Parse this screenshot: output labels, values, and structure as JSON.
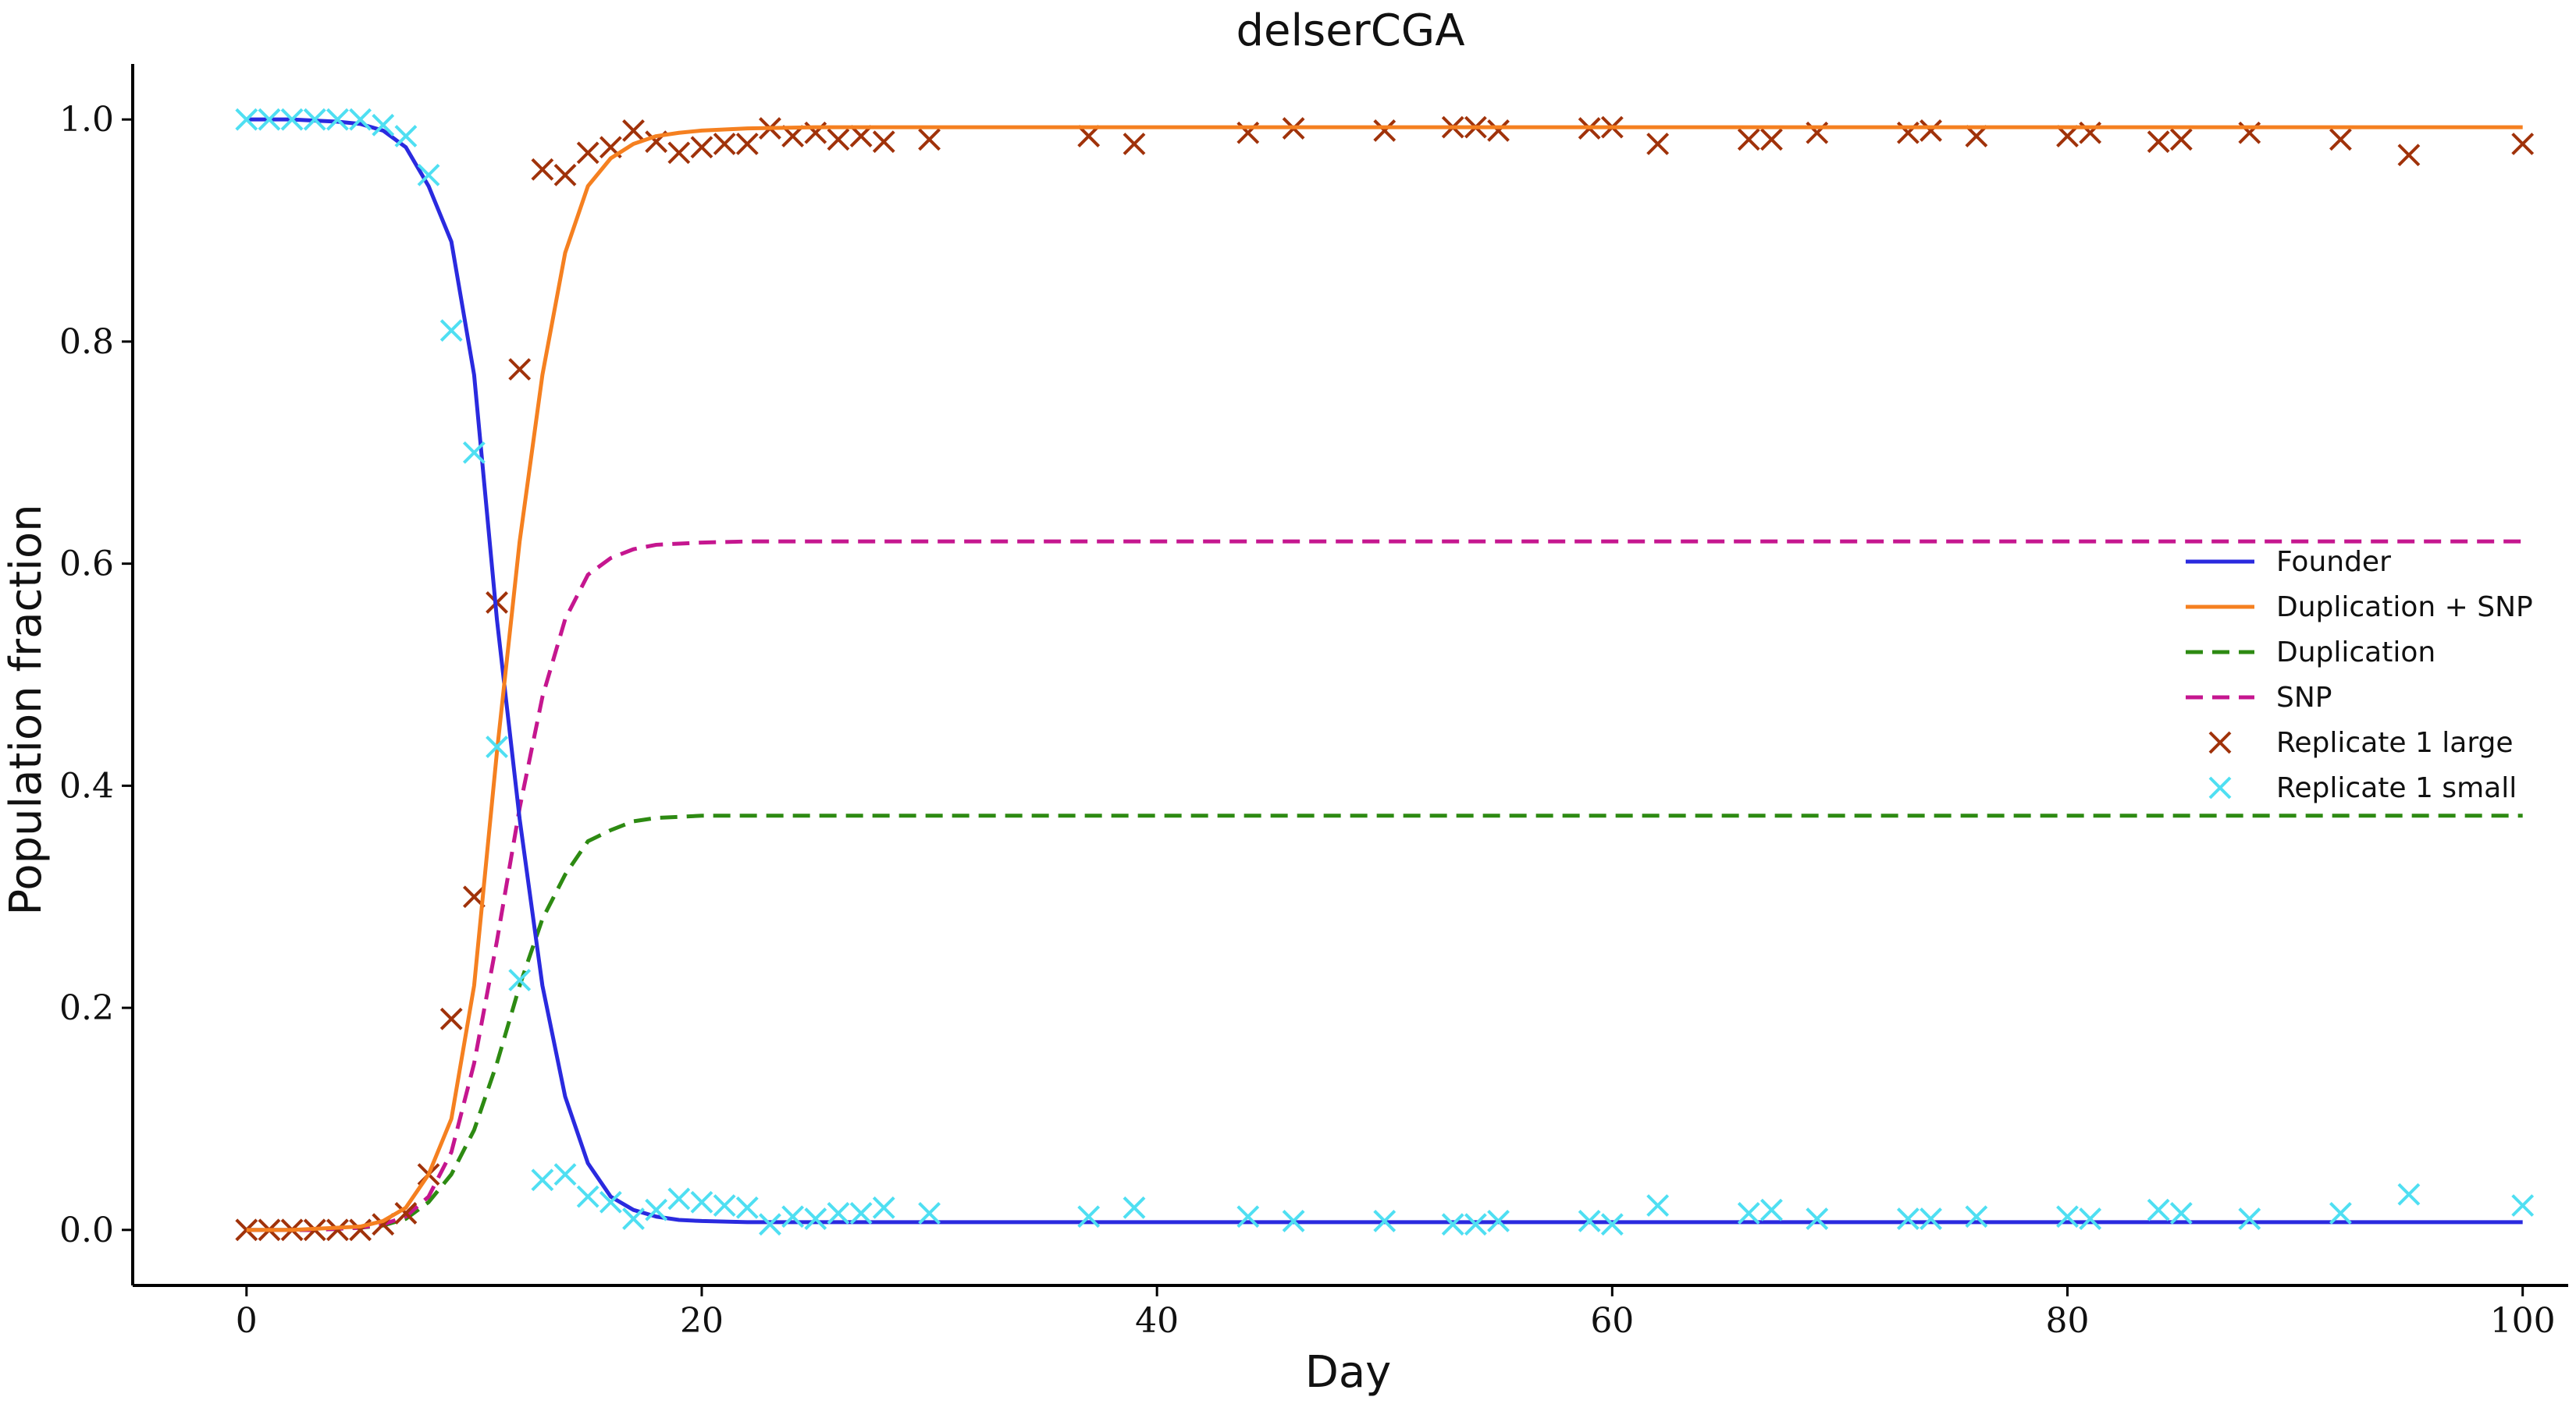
{
  "chart_data": {
    "type": "line",
    "title": "delserCGA",
    "xlabel": "Day",
    "ylabel": "Population fraction",
    "xlim": [
      -5,
      102
    ],
    "ylim": [
      -0.05,
      1.05
    ],
    "xticks": [
      0,
      20,
      40,
      60,
      80,
      100
    ],
    "yticks": [
      0.0,
      0.2,
      0.4,
      0.6,
      0.8,
      1.0
    ],
    "xtick_labels": [
      "0",
      "20",
      "40",
      "60",
      "80",
      "100"
    ],
    "ytick_labels": [
      "0.0",
      "0.2",
      "0.4",
      "0.6",
      "0.8",
      "1.0"
    ],
    "grid": false,
    "legend_position": "center-right",
    "x": [
      0,
      1,
      2,
      3,
      4,
      5,
      6,
      7,
      8,
      9,
      10,
      11,
      12,
      13,
      14,
      15,
      16,
      17,
      18,
      19,
      20,
      22,
      25,
      30,
      40,
      50,
      60,
      70,
      80,
      90,
      100
    ],
    "series": [
      {
        "name": "Founder",
        "kind": "line",
        "style": "solid",
        "color": "#2a2adf",
        "values": [
          1.0,
          1.0,
          1.0,
          0.999,
          0.998,
          0.996,
          0.99,
          0.975,
          0.94,
          0.89,
          0.77,
          0.55,
          0.37,
          0.22,
          0.12,
          0.06,
          0.03,
          0.018,
          0.012,
          0.009,
          0.008,
          0.007,
          0.007,
          0.007,
          0.007,
          0.007,
          0.007,
          0.007,
          0.007,
          0.007,
          0.007
        ]
      },
      {
        "name": "Duplication + SNP",
        "kind": "line",
        "style": "solid",
        "color": "#f58020",
        "values": [
          0.0,
          0.0,
          0.0,
          0.001,
          0.002,
          0.003,
          0.008,
          0.02,
          0.05,
          0.1,
          0.22,
          0.43,
          0.62,
          0.77,
          0.88,
          0.94,
          0.965,
          0.978,
          0.985,
          0.988,
          0.99,
          0.992,
          0.993,
          0.993,
          0.993,
          0.993,
          0.993,
          0.993,
          0.993,
          0.993,
          0.993
        ]
      },
      {
        "name": "Duplication",
        "kind": "line",
        "style": "dashed",
        "color": "#2d8a12",
        "values": [
          0.0,
          0.0,
          0.0,
          0.0,
          0.001,
          0.002,
          0.004,
          0.01,
          0.025,
          0.05,
          0.09,
          0.15,
          0.22,
          0.28,
          0.32,
          0.35,
          0.36,
          0.368,
          0.371,
          0.372,
          0.373,
          0.373,
          0.373,
          0.373,
          0.373,
          0.373,
          0.373,
          0.373,
          0.373,
          0.373,
          0.373
        ]
      },
      {
        "name": "SNP",
        "kind": "line",
        "style": "dashed",
        "color": "#c5168f",
        "values": [
          0.0,
          0.0,
          0.0,
          0.0,
          0.001,
          0.002,
          0.005,
          0.012,
          0.03,
          0.07,
          0.15,
          0.26,
          0.38,
          0.48,
          0.55,
          0.59,
          0.605,
          0.613,
          0.617,
          0.618,
          0.619,
          0.62,
          0.62,
          0.62,
          0.62,
          0.62,
          0.62,
          0.62,
          0.62,
          0.62,
          0.62
        ]
      },
      {
        "name": "Replicate 1 large",
        "kind": "scatter",
        "marker": "x",
        "color": "#a0320a",
        "points": [
          [
            0,
            0.0
          ],
          [
            1,
            0.0
          ],
          [
            2,
            0.0
          ],
          [
            3,
            0.0
          ],
          [
            4,
            0.0
          ],
          [
            5,
            0.0
          ],
          [
            6,
            0.005
          ],
          [
            7,
            0.015
          ],
          [
            8,
            0.05
          ],
          [
            9,
            0.19
          ],
          [
            10,
            0.3
          ],
          [
            11,
            0.565
          ],
          [
            12,
            0.775
          ],
          [
            13,
            0.955
          ],
          [
            14,
            0.95
          ],
          [
            15,
            0.97
          ],
          [
            16,
            0.975
          ],
          [
            17,
            0.99
          ],
          [
            18,
            0.98
          ],
          [
            19,
            0.97
          ],
          [
            20,
            0.975
          ],
          [
            21,
            0.978
          ],
          [
            22,
            0.978
          ],
          [
            23,
            0.992
          ],
          [
            24,
            0.985
          ],
          [
            25,
            0.988
          ],
          [
            26,
            0.982
          ],
          [
            27,
            0.985
          ],
          [
            28,
            0.98
          ],
          [
            30,
            0.982
          ],
          [
            37,
            0.985
          ],
          [
            39,
            0.978
          ],
          [
            44,
            0.988
          ],
          [
            46,
            0.992
          ],
          [
            50,
            0.99
          ],
          [
            53,
            0.993
          ],
          [
            54,
            0.993
          ],
          [
            55,
            0.99
          ],
          [
            59,
            0.992
          ],
          [
            60,
            0.993
          ],
          [
            62,
            0.978
          ],
          [
            66,
            0.982
          ],
          [
            67,
            0.982
          ],
          [
            69,
            0.988
          ],
          [
            73,
            0.988
          ],
          [
            74,
            0.99
          ],
          [
            76,
            0.985
          ],
          [
            80,
            0.985
          ],
          [
            81,
            0.988
          ],
          [
            84,
            0.98
          ],
          [
            85,
            0.982
          ],
          [
            88,
            0.988
          ],
          [
            92,
            0.982
          ],
          [
            95,
            0.968
          ],
          [
            100,
            0.978
          ]
        ]
      },
      {
        "name": "Replicate 1 small",
        "kind": "scatter",
        "marker": "x",
        "color": "#4fdff2",
        "points": [
          [
            0,
            1.0
          ],
          [
            1,
            1.0
          ],
          [
            2,
            1.0
          ],
          [
            3,
            1.0
          ],
          [
            4,
            1.0
          ],
          [
            5,
            1.0
          ],
          [
            6,
            0.995
          ],
          [
            7,
            0.985
          ],
          [
            8,
            0.95
          ],
          [
            9,
            0.81
          ],
          [
            10,
            0.7
          ],
          [
            11,
            0.435
          ],
          [
            12,
            0.225
          ],
          [
            13,
            0.045
          ],
          [
            14,
            0.05
          ],
          [
            15,
            0.03
          ],
          [
            16,
            0.025
          ],
          [
            17,
            0.01
          ],
          [
            18,
            0.018
          ],
          [
            19,
            0.028
          ],
          [
            20,
            0.025
          ],
          [
            21,
            0.022
          ],
          [
            22,
            0.02
          ],
          [
            23,
            0.005
          ],
          [
            24,
            0.012
          ],
          [
            25,
            0.01
          ],
          [
            26,
            0.015
          ],
          [
            27,
            0.015
          ],
          [
            28,
            0.02
          ],
          [
            30,
            0.015
          ],
          [
            37,
            0.012
          ],
          [
            39,
            0.02
          ],
          [
            44,
            0.012
          ],
          [
            46,
            0.008
          ],
          [
            50,
            0.008
          ],
          [
            53,
            0.005
          ],
          [
            54,
            0.005
          ],
          [
            55,
            0.008
          ],
          [
            59,
            0.008
          ],
          [
            60,
            0.005
          ],
          [
            62,
            0.022
          ],
          [
            66,
            0.015
          ],
          [
            67,
            0.018
          ],
          [
            69,
            0.01
          ],
          [
            73,
            0.01
          ],
          [
            74,
            0.01
          ],
          [
            76,
            0.012
          ],
          [
            80,
            0.012
          ],
          [
            81,
            0.01
          ],
          [
            84,
            0.018
          ],
          [
            85,
            0.015
          ],
          [
            88,
            0.01
          ],
          [
            92,
            0.015
          ],
          [
            95,
            0.032
          ],
          [
            100,
            0.022
          ]
        ]
      }
    ]
  }
}
